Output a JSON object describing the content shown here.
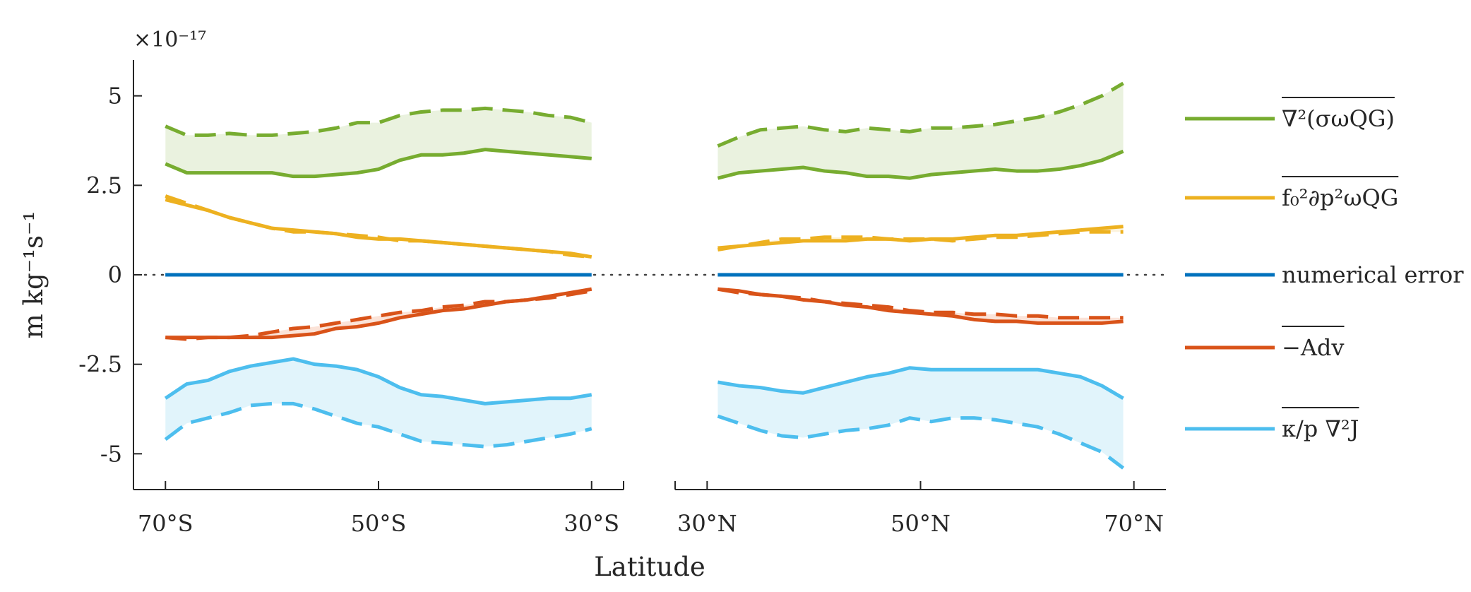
{
  "chart_data": {
    "type": "line",
    "xlabel": "Latitude",
    "ylabel": "m kg⁻¹s⁻¹",
    "y_scale_label": "×10⁻¹⁷",
    "ylim": [
      -6,
      6
    ],
    "y_ticks": [
      5,
      2.5,
      0,
      -2.5,
      -5
    ],
    "y_tick_labels": [
      "5",
      "2.5",
      "0",
      "-2.5",
      "-5"
    ],
    "zero_line": "dotted",
    "grid": false,
    "legend_position": "right",
    "panels": [
      {
        "name": "south",
        "xlim": [
          -73,
          -27
        ],
        "x_ticks": [
          -70,
          -50,
          -30
        ],
        "x_tick_labels": [
          "70°S",
          "50°S",
          "30°S"
        ],
        "x": [
          -70,
          -68,
          -66,
          -64,
          -62,
          -60,
          -58,
          -56,
          -54,
          -52,
          -50,
          -48,
          -46,
          -44,
          -42,
          -40,
          -38,
          -36,
          -34,
          -32,
          -30
        ],
        "series": [
          {
            "key": "lap_sigma_omega",
            "color": "#77AC30",
            "fill": "#EAF2DF",
            "solid": [
              3.1,
              2.85,
              2.85,
              2.85,
              2.85,
              2.85,
              2.75,
              2.75,
              2.8,
              2.85,
              2.95,
              3.2,
              3.35,
              3.35,
              3.4,
              3.5,
              3.45,
              3.4,
              3.35,
              3.3,
              3.25
            ],
            "dashed": [
              4.15,
              3.9,
              3.9,
              3.95,
              3.9,
              3.9,
              3.95,
              4.0,
              4.1,
              4.25,
              4.25,
              4.45,
              4.55,
              4.6,
              4.6,
              4.65,
              4.6,
              4.55,
              4.45,
              4.4,
              4.25
            ]
          },
          {
            "key": "f0_dp2_omega",
            "color": "#EDB120",
            "fill": "#FCF3DD",
            "solid": [
              2.1,
              1.95,
              1.8,
              1.6,
              1.45,
              1.3,
              1.25,
              1.2,
              1.15,
              1.05,
              1.0,
              1.0,
              0.95,
              0.9,
              0.85,
              0.8,
              0.75,
              0.7,
              0.65,
              0.6,
              0.5
            ],
            "dashed": [
              2.2,
              2.0,
              1.8,
              1.6,
              1.45,
              1.3,
              1.2,
              1.2,
              1.15,
              1.1,
              1.05,
              0.95,
              0.95,
              0.9,
              0.85,
              0.8,
              0.75,
              0.7,
              0.65,
              0.55,
              0.5
            ]
          },
          {
            "key": "numerical_error",
            "color": "#0072BD",
            "fill": "#D9EAF5",
            "solid": [
              0,
              0,
              0,
              0,
              0,
              0,
              0,
              0,
              0,
              0,
              0,
              0,
              0,
              0,
              0,
              0,
              0,
              0,
              0,
              0,
              0
            ],
            "dashed": [
              0,
              0,
              0,
              0,
              0,
              0,
              0,
              0,
              0,
              0,
              0,
              0,
              0,
              0,
              0,
              0,
              0,
              0,
              0,
              0,
              0
            ]
          },
          {
            "key": "neg_adv",
            "color": "#D95319",
            "fill": "#FBE3D8",
            "solid": [
              -1.75,
              -1.75,
              -1.75,
              -1.75,
              -1.75,
              -1.75,
              -1.7,
              -1.65,
              -1.5,
              -1.45,
              -1.35,
              -1.2,
              -1.1,
              -1.0,
              -0.95,
              -0.85,
              -0.75,
              -0.7,
              -0.6,
              -0.5,
              -0.4
            ],
            "dashed": [
              -1.75,
              -1.8,
              -1.75,
              -1.75,
              -1.7,
              -1.6,
              -1.5,
              -1.45,
              -1.35,
              -1.25,
              -1.15,
              -1.05,
              -1.0,
              -0.9,
              -0.85,
              -0.75,
              -0.75,
              -0.7,
              -0.65,
              -0.55,
              -0.45
            ]
          },
          {
            "key": "kappa_lap_J",
            "color": "#4DBEEE",
            "fill": "#E1F4FB",
            "solid": [
              -3.45,
              -3.05,
              -2.95,
              -2.7,
              -2.55,
              -2.45,
              -2.35,
              -2.5,
              -2.55,
              -2.65,
              -2.85,
              -3.15,
              -3.35,
              -3.4,
              -3.5,
              -3.6,
              -3.55,
              -3.5,
              -3.45,
              -3.45,
              -3.35
            ],
            "dashed": [
              -4.6,
              -4.15,
              -4.0,
              -3.85,
              -3.65,
              -3.6,
              -3.6,
              -3.75,
              -3.95,
              -4.15,
              -4.25,
              -4.45,
              -4.65,
              -4.7,
              -4.75,
              -4.8,
              -4.75,
              -4.65,
              -4.55,
              -4.45,
              -4.3
            ]
          }
        ]
      },
      {
        "name": "north",
        "xlim": [
          27,
          73
        ],
        "x_ticks": [
          30,
          50,
          70
        ],
        "x_tick_labels": [
          "30°N",
          "50°N",
          "70°N"
        ],
        "x": [
          31,
          33,
          35,
          37,
          39,
          41,
          43,
          45,
          47,
          49,
          51,
          53,
          55,
          57,
          59,
          61,
          63,
          65,
          67,
          69
        ],
        "series": [
          {
            "key": "lap_sigma_omega",
            "color": "#77AC30",
            "fill": "#EAF2DF",
            "solid": [
              2.7,
              2.85,
              2.9,
              2.95,
              3.0,
              2.9,
              2.85,
              2.75,
              2.75,
              2.7,
              2.8,
              2.85,
              2.9,
              2.95,
              2.9,
              2.9,
              2.95,
              3.05,
              3.2,
              3.45
            ],
            "dashed": [
              3.6,
              3.85,
              4.05,
              4.1,
              4.15,
              4.05,
              4.0,
              4.1,
              4.05,
              4.0,
              4.1,
              4.1,
              4.15,
              4.2,
              4.3,
              4.4,
              4.55,
              4.75,
              5.0,
              5.35
            ]
          },
          {
            "key": "f0_dp2_omega",
            "color": "#EDB120",
            "fill": "#FCF3DD",
            "solid": [
              0.7,
              0.8,
              0.85,
              0.9,
              0.95,
              0.95,
              0.95,
              1.0,
              1.0,
              0.95,
              1.0,
              1.0,
              1.05,
              1.1,
              1.1,
              1.15,
              1.2,
              1.25,
              1.3,
              1.35
            ],
            "dashed": [
              0.75,
              0.8,
              0.9,
              1.0,
              1.0,
              1.05,
              1.05,
              1.05,
              1.0,
              1.0,
              1.0,
              0.95,
              1.0,
              1.05,
              1.05,
              1.1,
              1.15,
              1.2,
              1.2,
              1.2
            ]
          },
          {
            "key": "numerical_error",
            "color": "#0072BD",
            "fill": "#D9EAF5",
            "solid": [
              0,
              0,
              0,
              0,
              0,
              0,
              0,
              0,
              0,
              0,
              0,
              0,
              0,
              0,
              0,
              0,
              0,
              0,
              0,
              0
            ],
            "dashed": [
              0,
              0,
              0,
              0,
              0,
              0,
              0,
              0,
              0,
              0,
              0,
              0,
              0,
              0,
              0,
              0,
              0,
              0,
              0,
              0
            ]
          },
          {
            "key": "neg_adv",
            "color": "#D95319",
            "fill": "#FBE3D8",
            "solid": [
              -0.4,
              -0.45,
              -0.55,
              -0.6,
              -0.7,
              -0.75,
              -0.85,
              -0.9,
              -1.0,
              -1.05,
              -1.1,
              -1.15,
              -1.25,
              -1.3,
              -1.3,
              -1.35,
              -1.35,
              -1.35,
              -1.35,
              -1.3
            ],
            "dashed": [
              -0.4,
              -0.5,
              -0.55,
              -0.6,
              -0.65,
              -0.75,
              -0.8,
              -0.85,
              -0.9,
              -1.0,
              -1.05,
              -1.05,
              -1.1,
              -1.1,
              -1.15,
              -1.15,
              -1.2,
              -1.2,
              -1.2,
              -1.2
            ]
          },
          {
            "key": "kappa_lap_J",
            "color": "#4DBEEE",
            "fill": "#E1F4FB",
            "solid": [
              -3.0,
              -3.1,
              -3.15,
              -3.25,
              -3.3,
              -3.15,
              -3.0,
              -2.85,
              -2.75,
              -2.6,
              -2.65,
              -2.65,
              -2.65,
              -2.65,
              -2.65,
              -2.65,
              -2.75,
              -2.85,
              -3.1,
              -3.45
            ],
            "dashed": [
              -3.95,
              -4.15,
              -4.35,
              -4.5,
              -4.55,
              -4.45,
              -4.35,
              -4.3,
              -4.2,
              -4.0,
              -4.1,
              -4.0,
              -4.0,
              -4.05,
              -4.15,
              -4.25,
              -4.45,
              -4.7,
              -4.95,
              -5.4
            ]
          }
        ]
      }
    ],
    "legend": [
      {
        "key": "lap_sigma_omega",
        "color": "#77AC30",
        "label": "∇²(σωQG)",
        "overline": true
      },
      {
        "key": "f0_dp2_omega",
        "color": "#EDB120",
        "label": "f₀²∂p²ωQG",
        "overline": true
      },
      {
        "key": "numerical_error",
        "color": "#0072BD",
        "label": "numerical error",
        "overline": false
      },
      {
        "key": "neg_adv",
        "color": "#D95319",
        "label": "−Adv",
        "overline": true
      },
      {
        "key": "kappa_lap_J",
        "color": "#4DBEEE",
        "label": "κ/p ∇²J",
        "overline": true
      }
    ]
  }
}
